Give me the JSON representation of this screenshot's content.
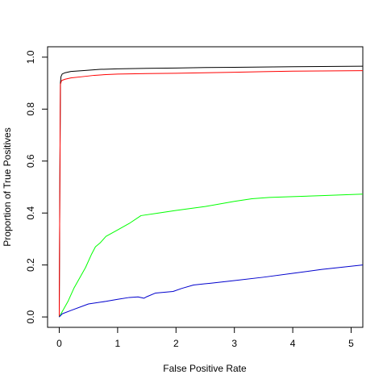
{
  "chart_data": {
    "type": "line",
    "title": "",
    "xlabel": "False Positive Rate",
    "ylabel": "Proportion of True Positives",
    "xlim": [
      -0.2,
      5.2
    ],
    "ylim": [
      -0.04,
      1.04
    ],
    "x_ticks": [
      0,
      1,
      2,
      3,
      4,
      5
    ],
    "x_tick_labels": [
      "0",
      "1",
      "2",
      "3",
      "4",
      "5"
    ],
    "y_ticks": [
      0.0,
      0.2,
      0.4,
      0.6,
      0.8,
      1.0
    ],
    "y_tick_labels": [
      "0.0",
      "0.2",
      "0.4",
      "0.6",
      "0.8",
      "1.0"
    ],
    "grid": false,
    "series": [
      {
        "color": "#000000",
        "points": [
          [
            0,
            0.0
          ],
          [
            0.01,
            0.5
          ],
          [
            0.02,
            0.9
          ],
          [
            0.03,
            0.925
          ],
          [
            0.05,
            0.935
          ],
          [
            0.1,
            0.94
          ],
          [
            0.2,
            0.945
          ],
          [
            0.4,
            0.948
          ],
          [
            0.7,
            0.953
          ],
          [
            1.0,
            0.955
          ],
          [
            1.5,
            0.957
          ],
          [
            2.0,
            0.958
          ],
          [
            2.5,
            0.96
          ],
          [
            3.0,
            0.961
          ],
          [
            3.5,
            0.962
          ],
          [
            4.0,
            0.963
          ],
          [
            4.5,
            0.964
          ],
          [
            5.2,
            0.965
          ]
        ]
      },
      {
        "color": "#ff0000",
        "points": [
          [
            0,
            0.0
          ],
          [
            0.01,
            0.5
          ],
          [
            0.02,
            0.895
          ],
          [
            0.04,
            0.91
          ],
          [
            0.1,
            0.915
          ],
          [
            0.2,
            0.92
          ],
          [
            0.4,
            0.925
          ],
          [
            0.6,
            0.93
          ],
          [
            0.8,
            0.933
          ],
          [
            1.0,
            0.935
          ],
          [
            1.5,
            0.937
          ],
          [
            2.0,
            0.938
          ],
          [
            2.5,
            0.94
          ],
          [
            3.0,
            0.942
          ],
          [
            3.5,
            0.944
          ],
          [
            4.0,
            0.946
          ],
          [
            4.5,
            0.947
          ],
          [
            5.2,
            0.948
          ]
        ]
      },
      {
        "color": "#00ff00",
        "points": [
          [
            0,
            0.0
          ],
          [
            0.05,
            0.02
          ],
          [
            0.15,
            0.06
          ],
          [
            0.25,
            0.11
          ],
          [
            0.35,
            0.15
          ],
          [
            0.45,
            0.19
          ],
          [
            0.55,
            0.24
          ],
          [
            0.62,
            0.27
          ],
          [
            0.7,
            0.285
          ],
          [
            0.8,
            0.31
          ],
          [
            1.0,
            0.335
          ],
          [
            1.2,
            0.36
          ],
          [
            1.4,
            0.39
          ],
          [
            1.7,
            0.4
          ],
          [
            2.0,
            0.41
          ],
          [
            2.5,
            0.425
          ],
          [
            3.0,
            0.445
          ],
          [
            3.3,
            0.455
          ],
          [
            3.6,
            0.46
          ],
          [
            4.0,
            0.463
          ],
          [
            4.5,
            0.467
          ],
          [
            5.2,
            0.473
          ]
        ]
      },
      {
        "color": "#0000cd",
        "points": [
          [
            0,
            0.0
          ],
          [
            0.05,
            0.012
          ],
          [
            0.2,
            0.025
          ],
          [
            0.5,
            0.05
          ],
          [
            0.8,
            0.06
          ],
          [
            1.0,
            0.068
          ],
          [
            1.2,
            0.075
          ],
          [
            1.35,
            0.077
          ],
          [
            1.45,
            0.072
          ],
          [
            1.5,
            0.078
          ],
          [
            1.65,
            0.092
          ],
          [
            1.8,
            0.095
          ],
          [
            1.95,
            0.098
          ],
          [
            2.1,
            0.11
          ],
          [
            2.3,
            0.123
          ],
          [
            2.6,
            0.13
          ],
          [
            3.0,
            0.14
          ],
          [
            3.5,
            0.153
          ],
          [
            4.0,
            0.168
          ],
          [
            4.5,
            0.183
          ],
          [
            5.2,
            0.2
          ]
        ]
      }
    ]
  }
}
